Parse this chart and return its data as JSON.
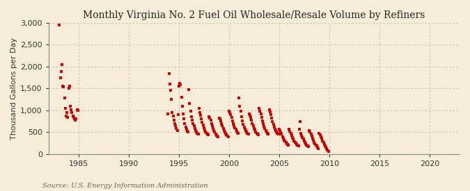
{
  "title": "Monthly Virginia No. 2 Fuel Oil Wholesale/Resale Volume by Refiners",
  "ylabel": "Thousand Gallons per Day",
  "source": "Source: U.S. Energy Information Administration",
  "background_color": "#F5EDD8",
  "plot_background_color": "#F5EDD8",
  "marker_color": "#CC0000",
  "marker": "s",
  "marker_size": 3.5,
  "xlim": [
    1982.0,
    2023.0
  ],
  "ylim": [
    0,
    3000
  ],
  "yticks": [
    0,
    500,
    1000,
    1500,
    2000,
    2500,
    3000
  ],
  "ytick_labels": [
    "0",
    "500",
    "1,000",
    "1,500",
    "2,000",
    "2,500",
    "3,000"
  ],
  "xticks": [
    1985,
    1990,
    1995,
    2000,
    2005,
    2010,
    2015,
    2020
  ],
  "grid_color": "#AAAAAA",
  "grid_linestyle": "--",
  "title_fontsize": 10,
  "label_fontsize": 8,
  "tick_fontsize": 8,
  "source_fontsize": 7,
  "data": [
    [
      1983.08,
      2950
    ],
    [
      1983.17,
      1750
    ],
    [
      1983.25,
      1880
    ],
    [
      1983.33,
      2050
    ],
    [
      1983.42,
      1550
    ],
    [
      1983.5,
      1530
    ],
    [
      1983.58,
      1280
    ],
    [
      1983.67,
      1050
    ],
    [
      1983.75,
      870
    ],
    [
      1983.83,
      950
    ],
    [
      1983.92,
      830
    ],
    [
      1984.0,
      1500
    ],
    [
      1984.08,
      1550
    ],
    [
      1984.17,
      1100
    ],
    [
      1984.25,
      1020
    ],
    [
      1984.33,
      950
    ],
    [
      1984.42,
      870
    ],
    [
      1984.5,
      830
    ],
    [
      1984.58,
      800
    ],
    [
      1984.67,
      780
    ],
    [
      1984.75,
      800
    ],
    [
      1984.83,
      1020
    ],
    [
      1984.92,
      1000
    ],
    [
      1993.92,
      920
    ],
    [
      1994.0,
      1840
    ],
    [
      1994.08,
      1600
    ],
    [
      1994.17,
      1450
    ],
    [
      1994.25,
      1250
    ],
    [
      1994.33,
      950
    ],
    [
      1994.42,
      870
    ],
    [
      1994.5,
      780
    ],
    [
      1994.58,
      700
    ],
    [
      1994.67,
      650
    ],
    [
      1994.75,
      580
    ],
    [
      1994.83,
      540
    ],
    [
      1994.92,
      900
    ],
    [
      1995.0,
      1550
    ],
    [
      1995.08,
      1620
    ],
    [
      1995.17,
      1580
    ],
    [
      1995.25,
      1300
    ],
    [
      1995.33,
      1100
    ],
    [
      1995.42,
      920
    ],
    [
      1995.5,
      800
    ],
    [
      1995.58,
      700
    ],
    [
      1995.67,
      620
    ],
    [
      1995.75,
      560
    ],
    [
      1995.83,
      520
    ],
    [
      1995.92,
      500
    ],
    [
      1996.0,
      1480
    ],
    [
      1996.08,
      1150
    ],
    [
      1996.17,
      980
    ],
    [
      1996.25,
      860
    ],
    [
      1996.33,
      780
    ],
    [
      1996.42,
      700
    ],
    [
      1996.5,
      640
    ],
    [
      1996.58,
      580
    ],
    [
      1996.67,
      540
    ],
    [
      1996.75,
      500
    ],
    [
      1996.83,
      480
    ],
    [
      1996.92,
      460
    ],
    [
      1997.0,
      1050
    ],
    [
      1997.08,
      950
    ],
    [
      1997.17,
      880
    ],
    [
      1997.25,
      800
    ],
    [
      1997.33,
      720
    ],
    [
      1997.42,
      660
    ],
    [
      1997.5,
      600
    ],
    [
      1997.58,
      550
    ],
    [
      1997.67,
      510
    ],
    [
      1997.75,
      480
    ],
    [
      1997.83,
      460
    ],
    [
      1997.92,
      440
    ],
    [
      1998.0,
      850
    ],
    [
      1998.08,
      820
    ],
    [
      1998.17,
      780
    ],
    [
      1998.25,
      700
    ],
    [
      1998.33,
      640
    ],
    [
      1998.42,
      580
    ],
    [
      1998.5,
      540
    ],
    [
      1998.58,
      500
    ],
    [
      1998.67,
      460
    ],
    [
      1998.75,
      430
    ],
    [
      1998.83,
      410
    ],
    [
      1998.92,
      390
    ],
    [
      1999.0,
      820
    ],
    [
      1999.08,
      800
    ],
    [
      1999.17,
      760
    ],
    [
      1999.25,
      700
    ],
    [
      1999.33,
      640
    ],
    [
      1999.42,
      580
    ],
    [
      1999.5,
      540
    ],
    [
      1999.58,
      500
    ],
    [
      1999.67,
      470
    ],
    [
      1999.75,
      440
    ],
    [
      1999.83,
      420
    ],
    [
      1999.92,
      400
    ],
    [
      2000.0,
      980
    ],
    [
      2000.08,
      950
    ],
    [
      2000.17,
      900
    ],
    [
      2000.25,
      830
    ],
    [
      2000.33,
      760
    ],
    [
      2000.42,
      700
    ],
    [
      2000.5,
      640
    ],
    [
      2000.58,
      600
    ],
    [
      2000.67,
      560
    ],
    [
      2000.75,
      520
    ],
    [
      2000.83,
      490
    ],
    [
      2000.92,
      470
    ],
    [
      2001.0,
      1280
    ],
    [
      2001.08,
      1100
    ],
    [
      2001.17,
      980
    ],
    [
      2001.25,
      860
    ],
    [
      2001.33,
      760
    ],
    [
      2001.42,
      680
    ],
    [
      2001.5,
      620
    ],
    [
      2001.58,
      570
    ],
    [
      2001.67,
      530
    ],
    [
      2001.75,
      500
    ],
    [
      2001.83,
      470
    ],
    [
      2001.92,
      450
    ],
    [
      2002.0,
      920
    ],
    [
      2002.08,
      880
    ],
    [
      2002.17,
      840
    ],
    [
      2002.25,
      770
    ],
    [
      2002.33,
      700
    ],
    [
      2002.42,
      640
    ],
    [
      2002.5,
      590
    ],
    [
      2002.58,
      550
    ],
    [
      2002.67,
      510
    ],
    [
      2002.75,
      480
    ],
    [
      2002.83,
      460
    ],
    [
      2002.92,
      440
    ],
    [
      2003.0,
      1050
    ],
    [
      2003.08,
      980
    ],
    [
      2003.17,
      920
    ],
    [
      2003.25,
      840
    ],
    [
      2003.33,
      760
    ],
    [
      2003.42,
      690
    ],
    [
      2003.5,
      630
    ],
    [
      2003.58,
      580
    ],
    [
      2003.67,
      540
    ],
    [
      2003.75,
      510
    ],
    [
      2003.83,
      480
    ],
    [
      2003.92,
      460
    ],
    [
      2004.0,
      1020
    ],
    [
      2004.08,
      960
    ],
    [
      2004.17,
      900
    ],
    [
      2004.25,
      820
    ],
    [
      2004.33,
      750
    ],
    [
      2004.42,
      680
    ],
    [
      2004.5,
      620
    ],
    [
      2004.58,
      570
    ],
    [
      2004.67,
      530
    ],
    [
      2004.75,
      500
    ],
    [
      2004.83,
      470
    ],
    [
      2004.92,
      450
    ],
    [
      2005.0,
      560
    ],
    [
      2005.08,
      530
    ],
    [
      2005.17,
      490
    ],
    [
      2005.25,
      450
    ],
    [
      2005.33,
      400
    ],
    [
      2005.42,
      360
    ],
    [
      2005.5,
      320
    ],
    [
      2005.58,
      290
    ],
    [
      2005.67,
      260
    ],
    [
      2005.75,
      240
    ],
    [
      2005.83,
      220
    ],
    [
      2005.92,
      200
    ],
    [
      2006.0,
      560
    ],
    [
      2006.08,
      520
    ],
    [
      2006.17,
      480
    ],
    [
      2006.25,
      430
    ],
    [
      2006.33,
      380
    ],
    [
      2006.42,
      340
    ],
    [
      2006.5,
      300
    ],
    [
      2006.58,
      270
    ],
    [
      2006.67,
      245
    ],
    [
      2006.75,
      225
    ],
    [
      2006.83,
      205
    ],
    [
      2006.92,
      185
    ],
    [
      2007.0,
      560
    ],
    [
      2007.08,
      750
    ],
    [
      2007.17,
      480
    ],
    [
      2007.25,
      430
    ],
    [
      2007.33,
      380
    ],
    [
      2007.42,
      340
    ],
    [
      2007.5,
      300
    ],
    [
      2007.58,
      265
    ],
    [
      2007.67,
      235
    ],
    [
      2007.75,
      210
    ],
    [
      2007.83,
      190
    ],
    [
      2007.92,
      170
    ],
    [
      2008.0,
      530
    ],
    [
      2008.08,
      500
    ],
    [
      2008.17,
      460
    ],
    [
      2008.25,
      410
    ],
    [
      2008.33,
      360
    ],
    [
      2008.42,
      310
    ],
    [
      2008.5,
      270
    ],
    [
      2008.58,
      235
    ],
    [
      2008.67,
      205
    ],
    [
      2008.75,
      180
    ],
    [
      2008.83,
      155
    ],
    [
      2008.92,
      130
    ],
    [
      2009.0,
      480
    ],
    [
      2009.08,
      440
    ],
    [
      2009.17,
      400
    ],
    [
      2009.25,
      355
    ],
    [
      2009.33,
      305
    ],
    [
      2009.42,
      260
    ],
    [
      2009.5,
      220
    ],
    [
      2009.58,
      185
    ],
    [
      2009.67,
      155
    ],
    [
      2009.75,
      125
    ],
    [
      2009.83,
      95
    ],
    [
      2009.92,
      65
    ]
  ]
}
